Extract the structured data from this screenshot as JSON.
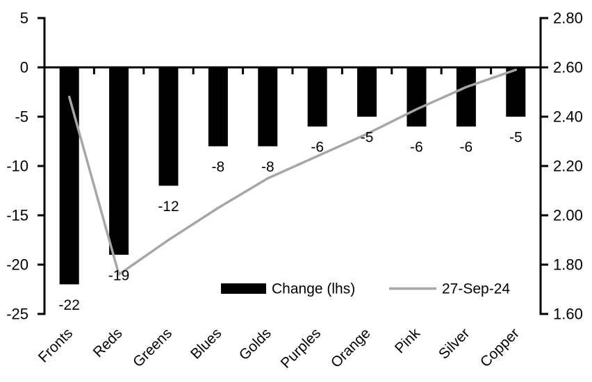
{
  "chart_data": {
    "type": "bar+line",
    "title": "",
    "categories": [
      "Fronts",
      "Reds",
      "Greens",
      "Blues",
      "Golds",
      "Purples",
      "Orange",
      "Pink",
      "Silver",
      "Copper"
    ],
    "series": [
      {
        "name": "Change (lhs)",
        "type": "bar",
        "axis": "left",
        "color": "#000000",
        "values": [
          -22,
          -19,
          -12,
          -8,
          -8,
          -6,
          -5,
          -6,
          -6,
          -5
        ],
        "data_labels": [
          "-22",
          "-19",
          "-12",
          "-8",
          "-8",
          "-6",
          "-5",
          "-6",
          "-6",
          "-5"
        ]
      },
      {
        "name": "27-Sep-24",
        "type": "line",
        "axis": "right",
        "color": "#a6a6a6",
        "values": [
          2.48,
          1.76,
          1.9,
          2.03,
          2.15,
          2.24,
          2.33,
          2.43,
          2.52,
          2.59
        ]
      }
    ],
    "left_axis": {
      "min": -25,
      "max": 5,
      "tick_step": 5,
      "tick_labels": [
        "5",
        "0",
        "-5",
        "-10",
        "-15",
        "-20",
        "-25"
      ]
    },
    "right_axis": {
      "min": 1.6,
      "max": 2.8,
      "tick_step": 0.2,
      "tick_labels": [
        "2.80",
        "2.60",
        "2.40",
        "2.20",
        "2.00",
        "1.80",
        "1.60"
      ]
    },
    "legend": {
      "position": "inside-bottom",
      "items": [
        {
          "label": "Change (lhs)",
          "swatch": "bar",
          "color": "#000000"
        },
        {
          "label": "27-Sep-24",
          "swatch": "line",
          "color": "#a6a6a6"
        }
      ]
    },
    "grid": false,
    "colors": {
      "bar": "#000000",
      "line": "#a6a6a6",
      "axis": "#000000",
      "background": "#ffffff",
      "text": "#000000"
    }
  }
}
